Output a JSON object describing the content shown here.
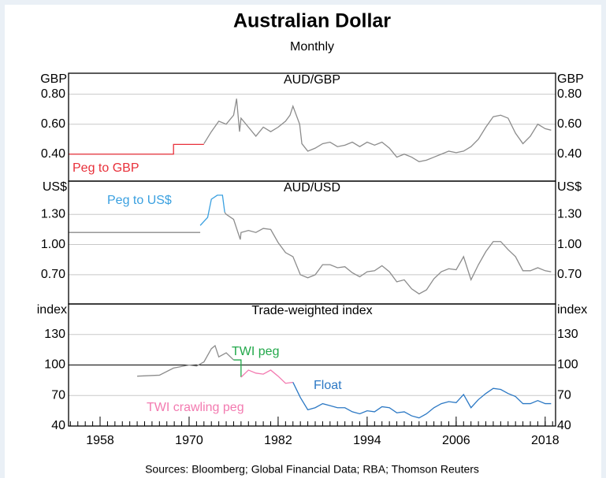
{
  "header": {
    "title": "Australian Dollar",
    "subtitle": "Monthly",
    "source": "Sources:  Bloomberg; Global Financial Data; RBA; Thomson Reuters"
  },
  "chart_data": [
    {
      "type": "line",
      "title": "AUD/GBP",
      "y_label": "GBP",
      "xlim": [
        1953.75,
        2019.4
      ],
      "ylim": [
        0.22,
        0.94
      ],
      "yticks": [
        {
          "value": 0.8,
          "label": "0.80"
        },
        {
          "value": 0.6,
          "label": "0.60"
        },
        {
          "value": 0.4,
          "label": "0.40"
        }
      ],
      "grid": true,
      "series": [
        {
          "name": "Peg to GBP",
          "color": "#e8303a",
          "x": [
            1953.75,
            1967.9,
            1967.9,
            1972
          ],
          "values": [
            0.4,
            0.4,
            0.465,
            0.465
          ]
        },
        {
          "color": "#8c8c8c",
          "x": [
            1972,
            1973,
            1974,
            1975,
            1976,
            1976.4,
            1976.8,
            1977,
            1978,
            1979,
            1980,
            1981,
            1982,
            1983,
            1983.6,
            1984,
            1984.9,
            1985.2,
            1986,
            1987,
            1988,
            1989,
            1990,
            1991,
            1992,
            1993,
            1994,
            1995,
            1996,
            1997,
            1998,
            1999,
            2000,
            2001,
            2002,
            2003,
            2004,
            2005,
            2006,
            2007,
            2008,
            2009,
            2010,
            2011,
            2012,
            2013,
            2014,
            2015,
            2016,
            2017,
            2018,
            2018.8
          ],
          "values": [
            0.47,
            0.55,
            0.62,
            0.6,
            0.66,
            0.77,
            0.55,
            0.64,
            0.58,
            0.52,
            0.58,
            0.55,
            0.58,
            0.62,
            0.66,
            0.72,
            0.6,
            0.47,
            0.42,
            0.44,
            0.47,
            0.48,
            0.45,
            0.46,
            0.48,
            0.45,
            0.48,
            0.46,
            0.48,
            0.44,
            0.38,
            0.4,
            0.38,
            0.35,
            0.36,
            0.38,
            0.4,
            0.42,
            0.41,
            0.42,
            0.45,
            0.5,
            0.58,
            0.65,
            0.66,
            0.64,
            0.54,
            0.47,
            0.52,
            0.6,
            0.57,
            0.56
          ]
        }
      ]
    },
    {
      "type": "line",
      "title": "AUD/USD",
      "y_label": "US$",
      "xlim": [
        1953.75,
        2019.4
      ],
      "ylim": [
        0.41,
        1.63
      ],
      "yticks": [
        {
          "value": 1.3,
          "label": "1.30"
        },
        {
          "value": 1.0,
          "label": "1.00"
        },
        {
          "value": 0.7,
          "label": "0.70"
        }
      ],
      "grid": true,
      "series": [
        {
          "color": "#8c8c8c",
          "x": [
            1953.75,
            1971.5
          ],
          "values": [
            1.12,
            1.12
          ]
        },
        {
          "name": "Peg to US$",
          "color": "#3aa0e0",
          "x": [
            1971.5,
            1972.5,
            1973,
            1973.8,
            1974.5,
            1974.8
          ],
          "values": [
            1.19,
            1.27,
            1.45,
            1.49,
            1.49,
            1.32
          ]
        },
        {
          "color": "#8c8c8c",
          "x": [
            1974.8,
            1975,
            1976,
            1976.9,
            1977,
            1978,
            1979,
            1980,
            1981,
            1982,
            1983,
            1984,
            1985,
            1986,
            1987,
            1988,
            1989,
            1990,
            1991,
            1992,
            1993,
            1994,
            1995,
            1996,
            1997,
            1998,
            1999,
            2000,
            2001,
            2002,
            2003,
            2004,
            2005,
            2006,
            2007,
            2008,
            2009,
            2010,
            2011,
            2012,
            2013,
            2014,
            2015,
            2016,
            2017,
            2018,
            2018.8
          ],
          "values": [
            1.32,
            1.3,
            1.25,
            1.05,
            1.12,
            1.14,
            1.12,
            1.16,
            1.15,
            1.02,
            0.92,
            0.88,
            0.7,
            0.67,
            0.7,
            0.8,
            0.8,
            0.77,
            0.78,
            0.72,
            0.68,
            0.73,
            0.74,
            0.79,
            0.73,
            0.63,
            0.65,
            0.56,
            0.51,
            0.55,
            0.66,
            0.73,
            0.76,
            0.75,
            0.88,
            0.65,
            0.8,
            0.93,
            1.03,
            1.03,
            0.95,
            0.88,
            0.74,
            0.74,
            0.77,
            0.74,
            0.73
          ]
        }
      ]
    },
    {
      "type": "line",
      "title": "Trade-weighted index",
      "y_label": "index",
      "xlim": [
        1953.75,
        2019.4
      ],
      "ylim": [
        40,
        160
      ],
      "yticks": [
        130,
        100,
        70,
        40
      ],
      "xticks": [
        1958,
        1970,
        1982,
        1994,
        2006,
        2018
      ],
      "grid": true,
      "baseline": 100,
      "series": [
        {
          "color": "#8c8c8c",
          "x": [
            1963,
            1966,
            1967.9,
            1970,
            1971,
            1972,
            1973,
            1973.5,
            1974,
            1975,
            1976
          ],
          "values": [
            89,
            90,
            97,
            100,
            99,
            103,
            116,
            119,
            108,
            112,
            105
          ]
        },
        {
          "name": "TWI peg",
          "color": "#22a84a",
          "x": [
            1976,
            1977,
            1977
          ],
          "values": [
            105,
            105,
            88
          ]
        },
        {
          "name": "TWI crawling peg",
          "color": "#f37ab0",
          "x": [
            1977,
            1978,
            1979,
            1980,
            1981,
            1982,
            1983,
            1984
          ],
          "values": [
            88,
            95,
            92,
            91,
            95,
            89,
            82,
            83
          ]
        },
        {
          "name": "Float",
          "color": "#2b78c4",
          "x": [
            1984,
            1985,
            1986,
            1987,
            1988,
            1989,
            1990,
            1991,
            1992,
            1993,
            1994,
            1995,
            1996,
            1997,
            1998,
            1999,
            2000,
            2001,
            2002,
            2003,
            2004,
            2005,
            2006,
            2007,
            2008,
            2009,
            2010,
            2011,
            2012,
            2013,
            2014,
            2015,
            2016,
            2017,
            2018,
            2018.8
          ],
          "values": [
            83,
            68,
            56,
            58,
            62,
            60,
            58,
            58,
            54,
            52,
            55,
            54,
            59,
            58,
            53,
            54,
            50,
            48,
            52,
            58,
            62,
            64,
            63,
            71,
            58,
            66,
            72,
            77,
            76,
            72,
            69,
            62,
            62,
            65,
            62,
            62
          ]
        }
      ]
    }
  ]
}
